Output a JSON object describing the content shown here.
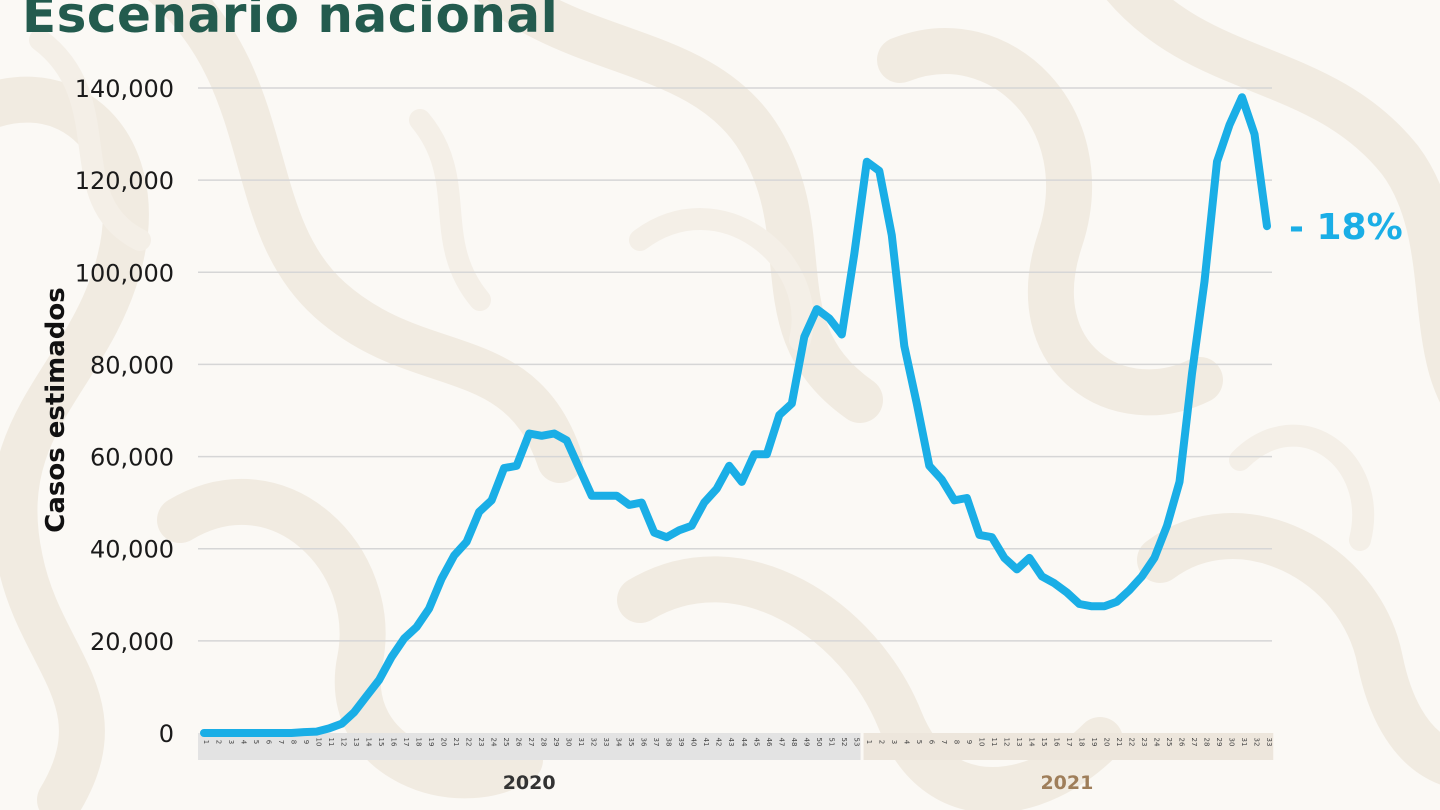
{
  "title": "Escenario nacional",
  "colors": {
    "title": "#235b4e",
    "line": "#1aaee6",
    "year_2020": "#333333",
    "year_2021": "#9f7e5a",
    "band_2020": "#e3e3e3",
    "band_2021": "#ede6dc"
  },
  "chart_data": {
    "type": "line",
    "ylabel": "Casos estimados",
    "ylim": [
      0,
      140000
    ],
    "yticks": [
      0,
      20000,
      40000,
      60000,
      80000,
      100000,
      120000,
      140000
    ],
    "ytick_labels": [
      "0",
      "20,000",
      "40,000",
      "60,000",
      "80,000",
      "100,000",
      "120,000",
      "140,000"
    ],
    "grid": true,
    "years": [
      {
        "label": "2020",
        "weeks": [
          "1",
          "2",
          "3",
          "4",
          "5",
          "6",
          "7",
          "8",
          "9",
          "10",
          "11",
          "12",
          "13",
          "14",
          "15",
          "16",
          "17",
          "18",
          "19",
          "20",
          "21",
          "22",
          "23",
          "24",
          "25",
          "26",
          "27",
          "28",
          "29",
          "30",
          "31",
          "32",
          "33",
          "34",
          "35",
          "36",
          "37",
          "38",
          "39",
          "40",
          "41",
          "42",
          "43",
          "44",
          "45",
          "46",
          "47",
          "48",
          "49",
          "50",
          "51",
          "52",
          "53"
        ]
      },
      {
        "label": "2021",
        "weeks": [
          "1",
          "2",
          "3",
          "4",
          "5",
          "6",
          "7",
          "8",
          "9",
          "10",
          "11",
          "12",
          "13",
          "14",
          "15",
          "16",
          "17",
          "18",
          "19",
          "20",
          "21",
          "22",
          "23",
          "24",
          "25",
          "26",
          "27",
          "28",
          "29",
          "30",
          "31",
          "32",
          "33"
        ]
      }
    ],
    "series": [
      {
        "values": [
          0,
          0,
          0,
          0,
          0,
          0,
          0,
          0,
          200,
          300,
          1000,
          2000,
          4500,
          8000,
          11500,
          16500,
          20500,
          23000,
          27000,
          33500,
          38500,
          41500,
          48000,
          50500,
          57500,
          58000,
          65000,
          64500,
          65000,
          63500,
          57500,
          51500,
          51500,
          51500,
          49500,
          50000,
          43500,
          42500,
          44000,
          45000,
          50000,
          53000,
          58000,
          54500,
          60500,
          60500,
          69000,
          71500,
          86000,
          92000,
          90000,
          86500,
          104000,
          124000,
          122000,
          108000,
          84000,
          71500,
          58000,
          55000,
          50500,
          51000,
          43000,
          42500,
          38000,
          35500,
          38000,
          34000,
          32500,
          30500,
          28000,
          27500,
          27500,
          28500,
          31000,
          34000,
          38000,
          45000,
          54500,
          78000,
          98000,
          124000,
          132000,
          138000,
          130000,
          110000
        ]
      }
    ],
    "annotation": "- 18%"
  }
}
